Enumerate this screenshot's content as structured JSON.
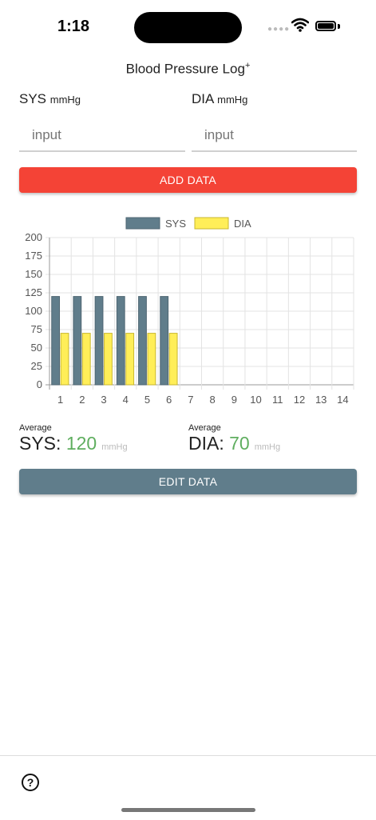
{
  "status": {
    "time": "1:18"
  },
  "header": {
    "title": "Blood Pressure Log",
    "title_sup": "+"
  },
  "sys_field": {
    "label": "SYS",
    "unit": "mmHg",
    "placeholder": "input"
  },
  "dia_field": {
    "label": "DIA",
    "unit": "mmHg",
    "placeholder": "input"
  },
  "buttons": {
    "add_label": "ADD DATA",
    "edit_label": "EDIT DATA"
  },
  "chart_data": {
    "type": "bar",
    "categories": [
      "1",
      "2",
      "3",
      "4",
      "5",
      "6",
      "7",
      "8",
      "9",
      "10",
      "11",
      "12",
      "13",
      "14"
    ],
    "series": [
      {
        "name": "SYS",
        "values": [
          120,
          120,
          120,
          120,
          120,
          120,
          null,
          null,
          null,
          null,
          null,
          null,
          null,
          null
        ],
        "color": "#607d8b"
      },
      {
        "name": "DIA",
        "values": [
          70,
          70,
          70,
          70,
          70,
          70,
          null,
          null,
          null,
          null,
          null,
          null,
          null,
          null
        ],
        "color": "#ffee58"
      }
    ],
    "ylim": [
      0,
      200
    ],
    "yticks": [
      "0",
      "25",
      "50",
      "75",
      "100",
      "125",
      "150",
      "175",
      "200"
    ],
    "legend": "top",
    "grid": true
  },
  "averages": {
    "sys": {
      "caption": "Average",
      "label": "SYS:",
      "value": "120",
      "unit": "mmHg"
    },
    "dia": {
      "caption": "Average",
      "label": "DIA:",
      "value": "70",
      "unit": "mmHg"
    }
  },
  "colors": {
    "add": "#f44336",
    "edit": "#607d8b",
    "avg_value": "#5fae5f"
  },
  "bottom": {
    "help_icon": "help-circle-icon",
    "help_glyph": "?"
  }
}
